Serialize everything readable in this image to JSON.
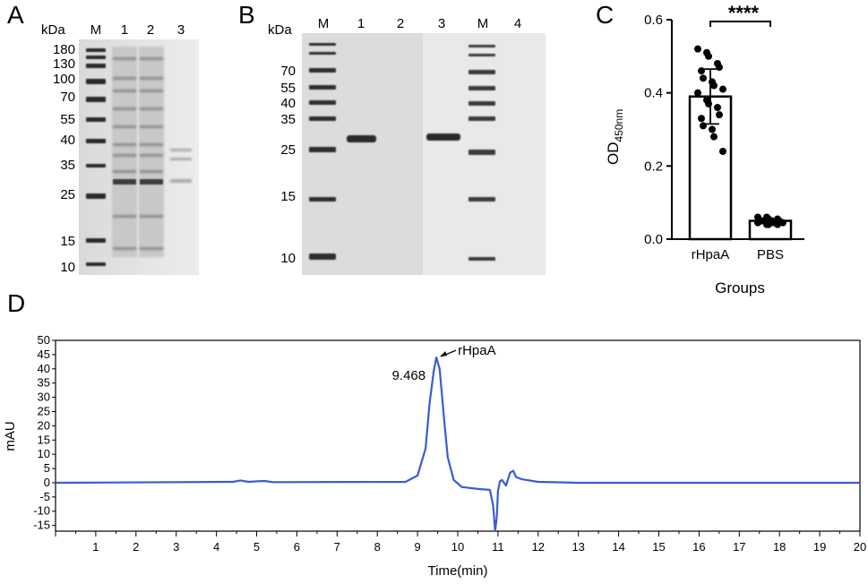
{
  "panels": {
    "a": "A",
    "b": "B",
    "c": "C",
    "d": "D"
  },
  "gel_a": {
    "unit": "kDa",
    "lanes": [
      "M",
      "1",
      "2",
      "3"
    ],
    "markers": [
      "180",
      "130",
      "100",
      "70",
      "55",
      "40",
      "35",
      "25",
      "15",
      "10"
    ]
  },
  "gel_b": {
    "unit": "kDa",
    "lanes": [
      "M",
      "1",
      "2",
      "3",
      "M",
      "4"
    ],
    "markers": [
      "70",
      "55",
      "40",
      "35",
      "25",
      "15",
      "10"
    ]
  },
  "chart_data": [
    {
      "type": "bar",
      "panel": "C",
      "categories": [
        "rHpaA",
        "PBS"
      ],
      "values": [
        0.39,
        0.05
      ],
      "error": [
        0.075,
        0.005
      ],
      "points": [
        [
          0.52,
          0.51,
          0.5,
          0.48,
          0.47,
          0.46,
          0.44,
          0.43,
          0.42,
          0.41,
          0.4,
          0.38,
          0.37,
          0.36,
          0.34,
          0.33,
          0.31,
          0.3,
          0.28,
          0.24
        ],
        [
          0.06,
          0.06,
          0.055,
          0.055,
          0.05,
          0.05,
          0.05,
          0.05,
          0.045,
          0.045,
          0.045,
          0.04,
          0.04,
          0.04
        ]
      ],
      "ylabel": "OD",
      "ylabel_sub": "450nm",
      "xlabel": "Groups",
      "yticks": [
        "0.0",
        "0.2",
        "0.4",
        "0.6"
      ],
      "ylim": [
        0,
        0.6
      ],
      "significance": "****"
    },
    {
      "type": "line",
      "panel": "D",
      "xlabel": "Time(min)",
      "ylabel": "mAU",
      "xlim": [
        0,
        20
      ],
      "ylim": [
        -17,
        50
      ],
      "xticks": [
        "1",
        "2",
        "3",
        "4",
        "5",
        "6",
        "7",
        "8",
        "9",
        "10",
        "11",
        "12",
        "13",
        "14",
        "15",
        "16",
        "17",
        "18",
        "19",
        "20"
      ],
      "yticks": [
        "50",
        "45",
        "40",
        "35",
        "30",
        "25",
        "20",
        "15",
        "10",
        "5",
        "0",
        "-5",
        "-10",
        "-15"
      ],
      "peak_label": "9.468",
      "peak_annotation": "rHpaA",
      "line_color": "#3a5bd9",
      "x": [
        0,
        4.4,
        4.6,
        4.8,
        5.0,
        5.2,
        5.4,
        8.7,
        9.0,
        9.2,
        9.3,
        9.4,
        9.468,
        9.55,
        9.65,
        9.75,
        9.9,
        10.1,
        10.5,
        10.8,
        10.88,
        10.93,
        10.97,
        11.0,
        11.05,
        11.1,
        11.2,
        11.3,
        11.38,
        11.45,
        11.6,
        12.0,
        13.0,
        20
      ],
      "y": [
        0,
        0.3,
        0.8,
        0.3,
        0.5,
        0.6,
        0.2,
        0.3,
        2.5,
        12,
        28,
        39,
        44,
        40,
        24,
        9,
        1,
        -1.5,
        -2.2,
        -2.5,
        -8,
        -17,
        -12,
        -3,
        0.5,
        1,
        -1,
        3.5,
        4.2,
        2,
        1.2,
        0.3,
        0,
        0
      ]
    }
  ]
}
